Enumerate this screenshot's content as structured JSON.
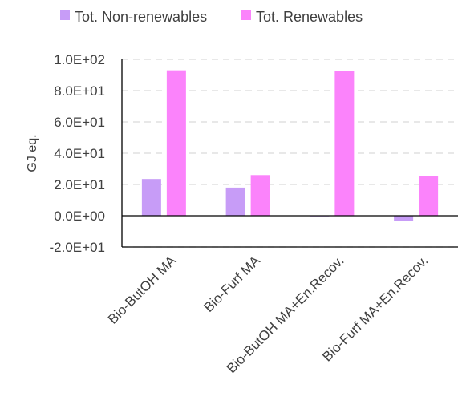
{
  "chart_data": {
    "type": "bar",
    "title": "",
    "xlabel": "",
    "ylabel": "GJ eq.",
    "categories": [
      "Bio-ButOH MA",
      "Bio-Furf MA",
      "Bio-ButOH MA+En.Recov.",
      "Bio-Furf MA+En.Recov."
    ],
    "series": [
      {
        "name": "Tot. Non-renewables",
        "color": "#c79cf7",
        "values": [
          23.5,
          18.0,
          -0.3,
          -3.5
        ]
      },
      {
        "name": "Tot. Renewables",
        "color": "#fb83fb",
        "values": [
          93.0,
          26.0,
          92.5,
          25.5
        ]
      }
    ],
    "ylim": [
      -20,
      100
    ],
    "yticks": [
      -20,
      0,
      20,
      40,
      60,
      80,
      100
    ],
    "ytick_labels": [
      "-2.0E+01",
      "0.0E+00",
      "2.0E+01",
      "4.0E+01",
      "6.0E+01",
      "8.0E+01",
      "1.0E+02"
    ],
    "grid": true,
    "legend_position": "top"
  }
}
